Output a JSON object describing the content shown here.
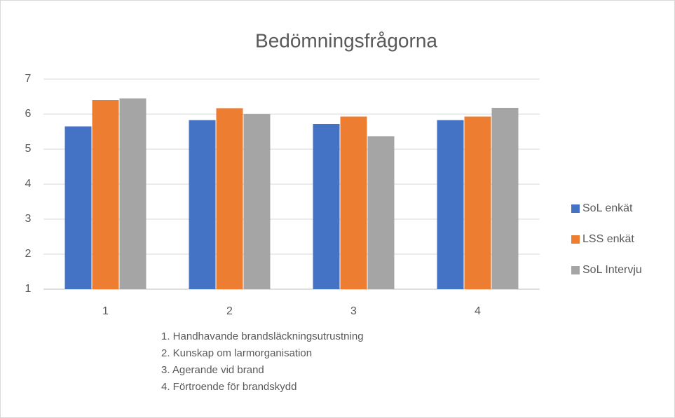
{
  "chart_data": {
    "type": "bar",
    "title": "Bedömningsfrågorna",
    "categories": [
      "1",
      "2",
      "3",
      "4"
    ],
    "series": [
      {
        "name": "SoL enkät",
        "color": "#4472c4",
        "values": [
          5.65,
          5.83,
          5.72,
          5.83
        ]
      },
      {
        "name": "LSS enkät",
        "color": "#ed7d31",
        "values": [
          6.4,
          6.17,
          5.93,
          5.93
        ]
      },
      {
        "name": "SoL Intervju",
        "color": "#a5a5a5",
        "values": [
          6.45,
          6.0,
          5.37,
          6.18
        ]
      }
    ],
    "ylim": [
      1,
      7
    ],
    "yticks": [
      1,
      2,
      3,
      4,
      5,
      6,
      7
    ],
    "grid": true,
    "legend": "right",
    "annotations": [
      "1. Handhavande brandsläckningsutrustning",
      "2. Kunskap om larmorganisation",
      "3. Agerande vid brand",
      "4. Förtroende för brandskydd"
    ]
  }
}
